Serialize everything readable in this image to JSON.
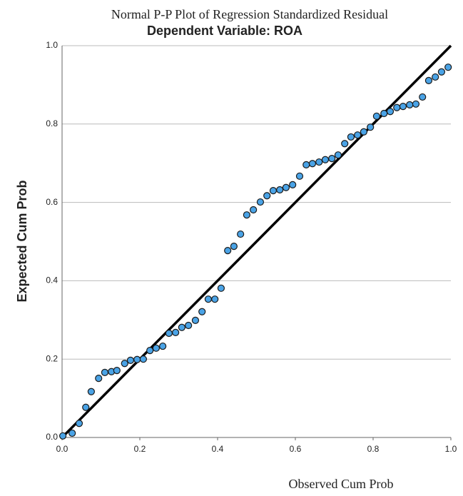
{
  "chart_data": {
    "type": "scatter",
    "title": "Normal P-P Plot of Regression Standardized Residual",
    "subtitle": "Dependent Variable: ROA",
    "x_label": "Observed Cum Prob",
    "y_label": "Expected Cum Prob",
    "xlim": [
      0,
      1
    ],
    "ylim": [
      0,
      1
    ],
    "xticks": [
      {
        "value": 0,
        "label": "0.0"
      },
      {
        "value": 0.2,
        "label": "0.2"
      },
      {
        "value": 0.4,
        "label": "0.4"
      },
      {
        "value": 0.6,
        "label": "0.6"
      },
      {
        "value": 0.8,
        "label": "0.8"
      },
      {
        "value": 1,
        "label": "1.0"
      }
    ],
    "yticks": [
      {
        "value": 0,
        "label": "0.0"
      },
      {
        "value": 0.2,
        "label": "0.2"
      },
      {
        "value": 0.4,
        "label": "0.4"
      },
      {
        "value": 0.6,
        "label": "0.6"
      },
      {
        "value": 0.8,
        "label": "0.8"
      },
      {
        "value": 1,
        "label": "1.0"
      }
    ],
    "grid": true,
    "series": [
      {
        "color": "#4aa3e6",
        "x": [
          0.002,
          0.026,
          0.044,
          0.061,
          0.075,
          0.094,
          0.11,
          0.127,
          0.141,
          0.161,
          0.176,
          0.193,
          0.209,
          0.226,
          0.242,
          0.259,
          0.275,
          0.292,
          0.308,
          0.325,
          0.343,
          0.36,
          0.376,
          0.393,
          0.409,
          0.426,
          0.442,
          0.459,
          0.475,
          0.492,
          0.51,
          0.527,
          0.543,
          0.56,
          0.576,
          0.593,
          0.611,
          0.628,
          0.644,
          0.661,
          0.677,
          0.694,
          0.71,
          0.727,
          0.743,
          0.76,
          0.776,
          0.793,
          0.809,
          0.828,
          0.844,
          0.861,
          0.877,
          0.894,
          0.91,
          0.927,
          0.943,
          0.96,
          0.976,
          0.993
        ],
        "values": [
          0.004,
          0.011,
          0.036,
          0.077,
          0.117,
          0.151,
          0.166,
          0.168,
          0.171,
          0.189,
          0.197,
          0.199,
          0.2,
          0.222,
          0.228,
          0.233,
          0.266,
          0.268,
          0.281,
          0.286,
          0.299,
          0.321,
          0.353,
          0.353,
          0.381,
          0.477,
          0.488,
          0.519,
          0.568,
          0.581,
          0.601,
          0.617,
          0.63,
          0.632,
          0.638,
          0.645,
          0.667,
          0.696,
          0.699,
          0.703,
          0.709,
          0.712,
          0.721,
          0.75,
          0.767,
          0.772,
          0.78,
          0.792,
          0.82,
          0.827,
          0.832,
          0.842,
          0.845,
          0.849,
          0.851,
          0.869,
          0.911,
          0.92,
          0.933,
          0.945
        ]
      }
    ]
  }
}
